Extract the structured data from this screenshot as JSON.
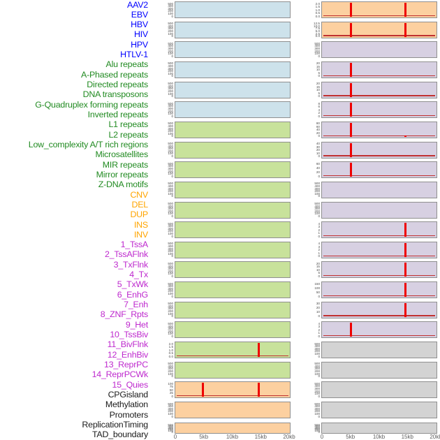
{
  "chart_data": {
    "type": "area",
    "description": "Multi-panel genomic signal profile: 44 feature tracks in two panel columns (22 rows each), signal across a 20kb window; red bars mark feature hits",
    "x_axis": {
      "tick_labels": [
        "0",
        "5kb",
        "10kb",
        "15kb",
        "20kb"
      ],
      "range_kb": [
        0,
        20
      ]
    },
    "panels_per_column": 2,
    "rows_per_column": 22,
    "colors": {
      "spike_red": "#ee0000",
      "baseline_red": "#c03030",
      "panel_border": "#8f8f8f",
      "ytick_text": "#4a4a4a",
      "xtick_text": "#606060"
    },
    "groups": {
      "virus": {
        "label_color": "#0000ff",
        "panel_color": "#cde2eb"
      },
      "repeat": {
        "label_color": "#228b22",
        "panel_color": "#c8e29b"
      },
      "sv": {
        "label_color": "#ffa500",
        "panel_color": "#fcd0a0"
      },
      "state": {
        "label_color": "#be29ce",
        "panel_color": "#d7d0e2"
      },
      "other": {
        "label_color": "#1a1a1a",
        "panel_color": "#d3d3d3"
      }
    },
    "features": [
      {
        "label": "AAV2",
        "group": "virus",
        "y_ticks": [
          "0",
          "100",
          "200",
          "300",
          "400",
          "500"
        ],
        "spikes": [],
        "baseline": false
      },
      {
        "label": "EBV",
        "group": "virus",
        "y_ticks": [
          "0",
          "100",
          "200",
          "300",
          "400",
          "500"
        ],
        "spikes": [],
        "baseline": false
      },
      {
        "label": "HBV",
        "group": "virus",
        "y_ticks": [
          "0",
          "100",
          "200",
          "300",
          "400",
          "500"
        ],
        "spikes": [],
        "baseline": false
      },
      {
        "label": "HIV",
        "group": "virus",
        "y_ticks": [
          "0",
          "100",
          "200",
          "300",
          "400",
          "500"
        ],
        "spikes": [],
        "baseline": false
      },
      {
        "label": "HPV",
        "group": "virus",
        "y_ticks": [
          "0",
          "100",
          "200",
          "300",
          "400",
          "500"
        ],
        "spikes": [],
        "baseline": false
      },
      {
        "label": "HTLV-1",
        "group": "virus",
        "y_ticks": [
          "0",
          "100",
          "200",
          "300",
          "400",
          "500"
        ],
        "spikes": [],
        "baseline": false
      },
      {
        "label": "Alu repeats",
        "group": "repeat",
        "y_ticks": [
          "0",
          "100",
          "200",
          "300",
          "400",
          "500"
        ],
        "spikes": [],
        "baseline": false
      },
      {
        "label": "A-Phased repeats",
        "group": "repeat",
        "y_ticks": [
          "0",
          "100",
          "200",
          "300",
          "400",
          "500"
        ],
        "spikes": [],
        "baseline": false
      },
      {
        "label": "Directed repeats",
        "group": "repeat",
        "y_ticks": [
          "0",
          "100",
          "200",
          "300",
          "400",
          "500"
        ],
        "spikes": [],
        "baseline": false
      },
      {
        "label": "DNA transposons",
        "group": "repeat",
        "y_ticks": [
          "0",
          "100",
          "200",
          "300",
          "400",
          "500"
        ],
        "spikes": [],
        "baseline": false
      },
      {
        "label": "G-Quadruplex forming repeats",
        "group": "repeat",
        "y_ticks": [
          "0",
          "100",
          "200",
          "300",
          "400",
          "500"
        ],
        "spikes": [],
        "baseline": false
      },
      {
        "label": "Inverted repeats",
        "group": "repeat",
        "y_ticks": [
          "0",
          "100",
          "200",
          "300",
          "400",
          "500"
        ],
        "spikes": [],
        "baseline": false
      },
      {
        "label": "L1 repeats",
        "group": "repeat",
        "y_ticks": [
          "0",
          "100",
          "200",
          "300",
          "400",
          "500"
        ],
        "spikes": [],
        "baseline": false
      },
      {
        "label": "L2 repeats",
        "group": "repeat",
        "y_ticks": [
          "0",
          "100",
          "200",
          "300",
          "400",
          "500"
        ],
        "spikes": [],
        "baseline": false
      },
      {
        "label": "Low_complexity A/T rich regions",
        "group": "repeat",
        "y_ticks": [
          "0",
          "100",
          "200",
          "300",
          "400",
          "500"
        ],
        "spikes": [],
        "baseline": false
      },
      {
        "label": "Microsatellites",
        "group": "repeat",
        "y_ticks": [
          "0",
          "100",
          "200",
          "300",
          "400",
          "500"
        ],
        "spikes": [],
        "baseline": false
      },
      {
        "label": "MIR repeats",
        "group": "repeat",
        "y_ticks": [
          "0",
          "100",
          "200",
          "300",
          "400",
          "500"
        ],
        "spikes": [],
        "baseline": false
      },
      {
        "label": "Mirror repeats",
        "group": "repeat",
        "y_ticks": [
          "0.0",
          "0.5",
          "1.0",
          "1.5",
          "2.0"
        ],
        "spikes": [
          {
            "kb": 14.8,
            "h": 1.0
          }
        ],
        "baseline": true
      },
      {
        "label": "Z-DNA motifs",
        "group": "repeat",
        "y_ticks": [
          "0",
          "100",
          "200",
          "300",
          "400",
          "500"
        ],
        "spikes": [],
        "baseline": false
      },
      {
        "label": "CNV",
        "group": "sv",
        "y_ticks": [
          "0",
          "25",
          "50",
          "75",
          "100"
        ],
        "spikes": [
          {
            "kb": 4.8,
            "h": 1.0
          },
          {
            "kb": 14.8,
            "h": 1.0
          }
        ],
        "baseline": true
      },
      {
        "label": "DEL",
        "group": "sv",
        "y_ticks": [
          "0",
          "100",
          "200",
          "300",
          "400",
          "500"
        ],
        "spikes": [],
        "baseline": false
      },
      {
        "label": "DUP",
        "group": "sv",
        "y_ticks": [
          "0",
          "100",
          "200",
          "300",
          "400",
          "500"
        ],
        "spikes": [],
        "baseline": false
      },
      {
        "label": "INS",
        "group": "sv",
        "y_ticks": [
          "0.0",
          "0.5",
          "1.0",
          "1.5",
          "2.0"
        ],
        "spikes": [
          {
            "kb": 5.0,
            "h": 1.0
          },
          {
            "kb": 14.8,
            "h": 1.0
          }
        ],
        "baseline": true
      },
      {
        "label": "INV",
        "group": "sv",
        "y_ticks": [
          "0.0",
          "2.5",
          "5.0",
          "7.5",
          "10.0",
          "12.5"
        ],
        "spikes": [
          {
            "kb": 5.0,
            "h": 1.0
          },
          {
            "kb": 14.8,
            "h": 1.0
          }
        ],
        "baseline": true
      },
      {
        "label": "1_TssA",
        "group": "state",
        "y_ticks": [
          "0",
          "100",
          "200",
          "300",
          "400",
          "500"
        ],
        "spikes": [],
        "baseline": false
      },
      {
        "label": "2_TssAFlnk",
        "group": "state",
        "y_ticks": [
          "0",
          "5",
          "10",
          "15",
          "20"
        ],
        "spikes": [
          {
            "kb": 5.0,
            "h": 1.0
          }
        ],
        "baseline": true
      },
      {
        "label": "3_TxFlnk",
        "group": "state",
        "y_ticks": [
          "0",
          "5",
          "10",
          "15",
          "20"
        ],
        "spikes": [
          {
            "kb": 5.0,
            "h": 1.0
          }
        ],
        "baseline": true
      },
      {
        "label": "4_Tx",
        "group": "state",
        "y_ticks": [
          "0",
          "2",
          "4",
          "6",
          "8"
        ],
        "spikes": [
          {
            "kb": 5.0,
            "h": 1.0
          }
        ],
        "baseline": true
      },
      {
        "label": "5_TxWk",
        "group": "state",
        "y_ticks": [
          "0",
          "20",
          "40",
          "60",
          "80"
        ],
        "spikes": [
          {
            "kb": 5.0,
            "h": 1.0
          },
          {
            "kb": 14.8,
            "h": 0.1
          }
        ],
        "baseline": true
      },
      {
        "label": "6_EnhG",
        "group": "state",
        "y_ticks": [
          "0",
          "10",
          "20",
          "30",
          "40"
        ],
        "spikes": [
          {
            "kb": 5.0,
            "h": 1.0
          }
        ],
        "baseline": true
      },
      {
        "label": "7_Enh",
        "group": "state",
        "y_ticks": [
          "0",
          "20",
          "40",
          "60"
        ],
        "spikes": [
          {
            "kb": 5.0,
            "h": 1.0
          }
        ],
        "baseline": true
      },
      {
        "label": "8_ZNF_Rpts",
        "group": "state",
        "y_ticks": [
          "0",
          "100",
          "200",
          "300",
          "400",
          "500"
        ],
        "spikes": [],
        "baseline": false
      },
      {
        "label": "9_Het",
        "group": "state",
        "y_ticks": [
          "0",
          "100",
          "200",
          "300",
          "400",
          "500"
        ],
        "spikes": [],
        "baseline": false
      },
      {
        "label": "10_TssBiv",
        "group": "state",
        "y_ticks": [
          "0",
          "1",
          "2",
          "3",
          "4"
        ],
        "spikes": [
          {
            "kb": 14.8,
            "h": 1.0
          }
        ],
        "baseline": true
      },
      {
        "label": "11_BivFlnk",
        "group": "state",
        "y_ticks": [
          "0",
          "1",
          "2",
          "3",
          "4"
        ],
        "spikes": [
          {
            "kb": 14.8,
            "h": 1.0
          }
        ],
        "baseline": true
      },
      {
        "label": "12_EnhBiv",
        "group": "state",
        "y_ticks": [
          "0",
          "5",
          "10",
          "15",
          "20"
        ],
        "spikes": [
          {
            "kb": 14.8,
            "h": 1.0
          }
        ],
        "baseline": true
      },
      {
        "label": "13_ReprPC",
        "group": "state",
        "y_ticks": [
          "0",
          "50",
          "100",
          "150"
        ],
        "spikes": [
          {
            "kb": 14.8,
            "h": 1.0
          }
        ],
        "baseline": true
      },
      {
        "label": "14_ReprPCWk",
        "group": "state",
        "y_ticks": [
          "0",
          "10",
          "20",
          "30"
        ],
        "spikes": [
          {
            "kb": 14.8,
            "h": 1.0
          }
        ],
        "baseline": true
      },
      {
        "label": "15_Quies",
        "group": "state",
        "y_ticks": [
          "0",
          "1",
          "2",
          "3",
          "4"
        ],
        "spikes": [
          {
            "kb": 5.0,
            "h": 1.0
          }
        ],
        "baseline": true
      },
      {
        "label": "CPGisland",
        "group": "other",
        "y_ticks": [
          "0",
          "100",
          "200",
          "300",
          "400",
          "500"
        ],
        "spikes": [],
        "baseline": false
      },
      {
        "label": "Methylation",
        "group": "other",
        "y_ticks": [
          "0",
          "100",
          "200",
          "300",
          "400",
          "500"
        ],
        "spikes": [],
        "baseline": false
      },
      {
        "label": "Promoters",
        "group": "other",
        "y_ticks": [
          "0",
          "100",
          "200",
          "300",
          "400",
          "500"
        ],
        "spikes": [],
        "baseline": false
      },
      {
        "label": "ReplicationTiming",
        "group": "other",
        "y_ticks": [
          "0",
          "100",
          "200",
          "300",
          "400",
          "500"
        ],
        "spikes": [],
        "baseline": false
      },
      {
        "label": "TAD_boundary",
        "group": "other",
        "y_ticks": [
          "0",
          "100",
          "200",
          "300",
          "400",
          "500"
        ],
        "spikes": [],
        "baseline": false
      }
    ]
  }
}
